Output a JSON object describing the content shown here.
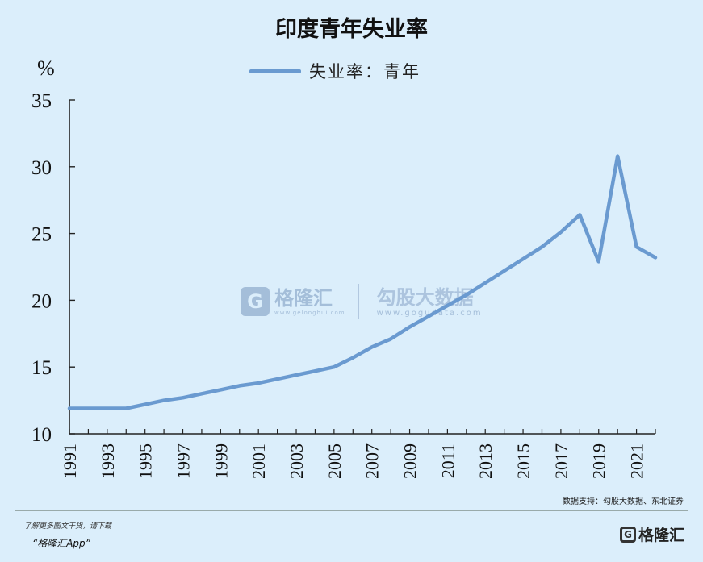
{
  "chart_data": {
    "type": "line",
    "title": "印度青年失业率",
    "ylabel": "%",
    "ylim": [
      10,
      35
    ],
    "yticks": [
      "10",
      "15",
      "20",
      "25",
      "30",
      "35"
    ],
    "xlim": [
      1991,
      2022
    ],
    "xticks": [
      "1991",
      "1993",
      "1995",
      "1997",
      "1999",
      "2001",
      "2003",
      "2005",
      "2007",
      "2009",
      "2011",
      "2013",
      "2015",
      "2017",
      "2019",
      "2021"
    ],
    "grid": false,
    "legend_position": "top-center",
    "series": [
      {
        "name": "失业率：青年",
        "color": "#6a9ad0",
        "x": [
          1991,
          1992,
          1993,
          1994,
          1995,
          1996,
          1997,
          1998,
          1999,
          2000,
          2001,
          2002,
          2003,
          2004,
          2005,
          2006,
          2007,
          2008,
          2009,
          2010,
          2011,
          2012,
          2013,
          2014,
          2015,
          2016,
          2017,
          2018,
          2019,
          2020,
          2021,
          2022
        ],
        "values": [
          11.9,
          11.9,
          11.9,
          11.9,
          12.2,
          12.5,
          12.7,
          13.0,
          13.3,
          13.6,
          13.8,
          14.1,
          14.4,
          14.7,
          15.0,
          15.7,
          16.5,
          17.1,
          18.0,
          18.8,
          19.6,
          20.4,
          21.3,
          22.2,
          23.1,
          24.0,
          25.1,
          26.4,
          22.9,
          30.8,
          24.0,
          23.2
        ]
      }
    ]
  },
  "source_text": "数据支持：勾股大数据、东北证券",
  "footer": {
    "promo": "了解更多图文干货，请下载",
    "app_name": "“格隆汇App”",
    "brand": "格隆汇",
    "brand_icon": "G"
  },
  "watermark": {
    "logo_letter": "G",
    "name1": "格隆汇",
    "url1": "www.gelonghui.com",
    "name2": "勾股大数据",
    "url2": "www.gogudata.com"
  }
}
